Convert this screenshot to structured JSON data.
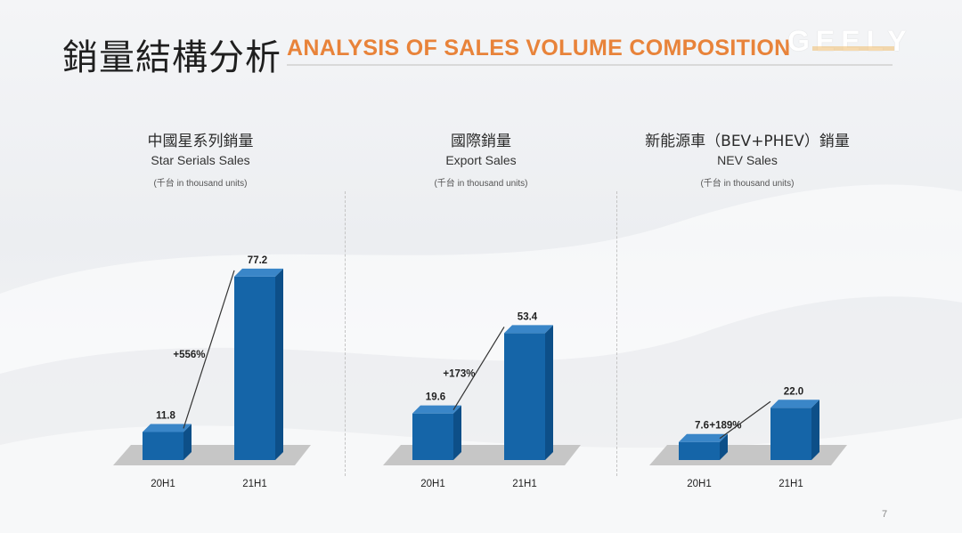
{
  "header": {
    "title_cn": "銷量結構分析",
    "title_en": "ANALYSIS OF SALES VOLUME COMPOSITION",
    "logo": "GEELY"
  },
  "colors": {
    "accent": "#e8833a",
    "bar_front": "#1565a8",
    "bar_top": "#3a86c8",
    "bar_side": "#0d4f88",
    "floor": "#c6c6c6"
  },
  "chart_data": [
    {
      "type": "bar",
      "title": "中國星系列銷量",
      "subtitle": "Star Serials Sales",
      "unit": "(千台 in thousand units)",
      "categories": [
        "20H1",
        "21H1"
      ],
      "values": [
        11.8,
        77.2
      ],
      "value_labels": [
        "11.8",
        "77.2"
      ],
      "growth": "+556%"
    },
    {
      "type": "bar",
      "title": "國際銷量",
      "subtitle": "Export Sales",
      "unit": "(千台 in thousand units)",
      "categories": [
        "20H1",
        "21H1"
      ],
      "values": [
        19.6,
        53.4
      ],
      "value_labels": [
        "19.6",
        "53.4"
      ],
      "growth": "+173%"
    },
    {
      "type": "bar",
      "title": "新能源車（BEV+PHEV）銷量",
      "subtitle": "NEV Sales",
      "unit": "(千台 in thousand units)",
      "categories": [
        "20H1",
        "21H1"
      ],
      "values": [
        7.6,
        22.0
      ],
      "value_labels": [
        "7.6",
        "22.0"
      ],
      "growth": "+189%"
    }
  ],
  "footer": {
    "page_number": "7"
  }
}
